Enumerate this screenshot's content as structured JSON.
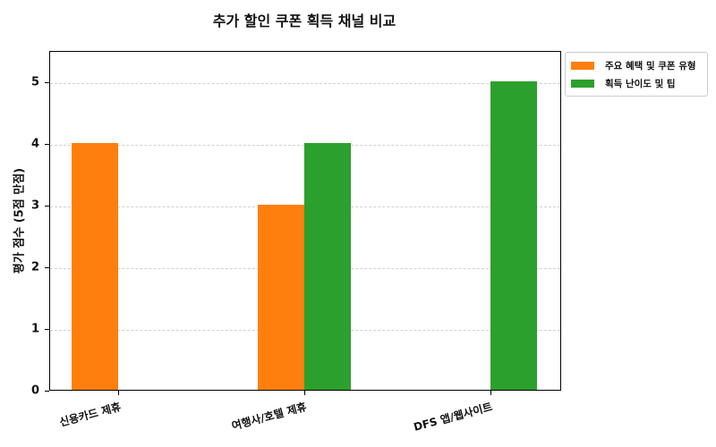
{
  "chart_data": {
    "type": "bar",
    "title": "추가 할인 쿠폰 획득 채널 비교",
    "xlabel": "",
    "ylabel": "평가 점수 (5점 만점)",
    "ylim": [
      0,
      5.5
    ],
    "yticks": [
      0,
      1,
      2,
      3,
      4,
      5
    ],
    "grid": true,
    "legend_position": "outside upper right",
    "categories": [
      "신용카드 제휴",
      "여행사/호텔 제휴",
      "DFS 앱/웹사이트"
    ],
    "series": [
      {
        "name": "주요 혜택 및 쿠폰 유형",
        "color": "#ff7f0e",
        "values": [
          4,
          3,
          0
        ]
      },
      {
        "name": "획득 난이도 및 팁",
        "color": "#2ca02c",
        "values": [
          0,
          4,
          5
        ]
      }
    ]
  },
  "title": "추가 할인 쿠폰 획득 채널 비교",
  "yaxis": {
    "title": "평가 점수 (5점 만점)",
    "ticks": [
      "0",
      "1",
      "2",
      "3",
      "4",
      "5"
    ]
  },
  "xaxis": {
    "labels": [
      "신용카드 제휴",
      "여행사/호텔 제휴",
      "DFS 앱/웹사이트"
    ]
  },
  "legend": {
    "items": [
      {
        "label": "주요 혜택 및 쿠폰 유형",
        "color": "#ff7f0e"
      },
      {
        "label": "획득 난이도 및 팁",
        "color": "#2ca02c"
      }
    ]
  }
}
